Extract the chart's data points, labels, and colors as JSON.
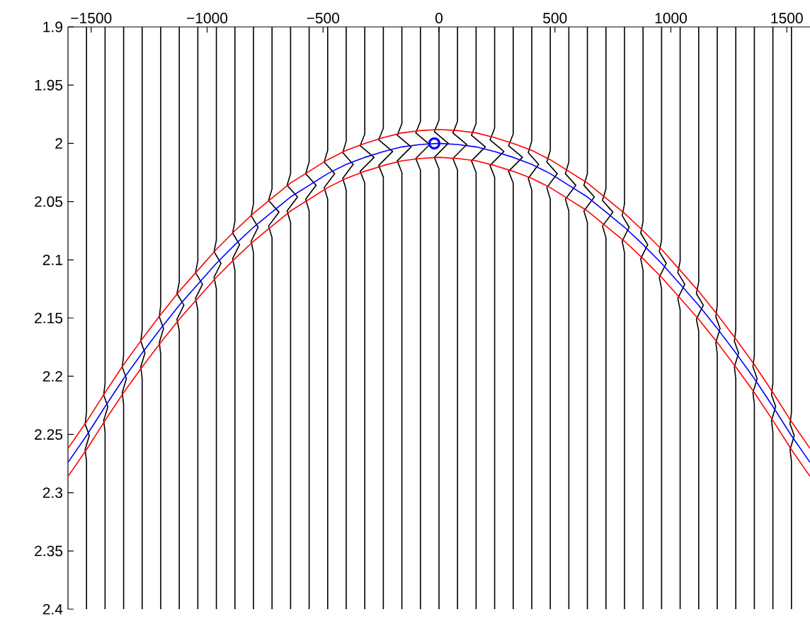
{
  "chart_data": {
    "type": "line",
    "xlim": [
      -1600,
      1600
    ],
    "ylim": [
      2.4,
      1.9
    ],
    "xticks": [
      {
        "value": -1500,
        "label": "−1500"
      },
      {
        "value": -1000,
        "label": "−1000"
      },
      {
        "value": -500,
        "label": "−500"
      },
      0,
      500,
      1000,
      1500
    ],
    "yticks": [
      1.9,
      1.95,
      2,
      2.05,
      2.1,
      2.15,
      2.2,
      2.25,
      2.3,
      2.35,
      2.4
    ],
    "grid": false,
    "marker": "none",
    "x": [
      -1600,
      -1520,
      -1440,
      -1360,
      -1280,
      -1200,
      -1120,
      -1040,
      -960,
      -880,
      -800,
      -720,
      -640,
      -560,
      -480,
      -400,
      -320,
      -240,
      -160,
      -80,
      0,
      80,
      160,
      240,
      320,
      400,
      480,
      560,
      640,
      720,
      800,
      880,
      960,
      1040,
      1120,
      1200,
      1280,
      1360,
      1440,
      1520,
      1600
    ],
    "series": [
      {
        "color": "#000000",
        "x": [
          -1520,
          -1520,
          -1526,
          -1508,
          -1526,
          -1520,
          -1520
        ],
        "values": [
          1.9,
          2.231,
          2.241,
          2.251,
          2.263,
          2.273,
          2.4
        ]
      },
      {
        "color": "#000000",
        "x": [
          -1440,
          -1440,
          -1446,
          -1428,
          -1446,
          -1440,
          -1440
        ],
        "values": [
          1.9,
          2.206,
          2.216,
          2.226,
          2.238,
          2.248,
          2.4
        ]
      },
      {
        "color": "#000000",
        "x": [
          -1360,
          -1360,
          -1366,
          -1348,
          -1366,
          -1360,
          -1360
        ],
        "values": [
          1.9,
          2.182,
          2.192,
          2.202,
          2.214,
          2.224,
          2.4
        ]
      },
      {
        "color": "#000000",
        "x": [
          -1280,
          -1280,
          -1286,
          -1268,
          -1286,
          -1280,
          -1280
        ],
        "values": [
          1.9,
          2.16,
          2.17,
          2.18,
          2.192,
          2.202,
          2.4
        ]
      },
      {
        "color": "#000000",
        "x": [
          -1200,
          -1200,
          -1206,
          -1188,
          -1206,
          -1200,
          -1200
        ],
        "values": [
          1.9,
          2.139,
          2.149,
          2.159,
          2.171,
          2.181,
          2.4
        ]
      },
      {
        "color": "#000000",
        "x": [
          -1120,
          -1120,
          -1130,
          -1100,
          -1130,
          -1120,
          -1120
        ],
        "values": [
          1.9,
          2.119,
          2.129,
          2.139,
          2.151,
          2.161,
          2.4
        ]
      },
      {
        "color": "#000000",
        "x": [
          -1040,
          -1040,
          -1050,
          -1020,
          -1050,
          -1040,
          -1040
        ],
        "values": [
          1.9,
          2.101,
          2.111,
          2.121,
          2.133,
          2.143,
          2.4
        ]
      },
      {
        "color": "#000000",
        "x": [
          -960,
          -960,
          -970,
          -940,
          -970,
          -960,
          -960
        ],
        "values": [
          1.9,
          2.083,
          2.093,
          2.103,
          2.115,
          2.125,
          2.4
        ]
      },
      {
        "color": "#000000",
        "x": [
          -880,
          -880,
          -890,
          -860,
          -890,
          -880,
          -880
        ],
        "values": [
          1.9,
          2.067,
          2.077,
          2.087,
          2.099,
          2.109,
          2.4
        ]
      },
      {
        "color": "#000000",
        "x": [
          -800,
          -800,
          -810,
          -780,
          -810,
          -800,
          -800
        ],
        "values": [
          1.9,
          2.052,
          2.062,
          2.072,
          2.084,
          2.094,
          2.4
        ]
      },
      {
        "color": "#000000",
        "x": [
          -720,
          -720,
          -735,
          -690,
          -735,
          -720,
          -720
        ],
        "values": [
          1.9,
          2.039,
          2.049,
          2.059,
          2.071,
          2.081,
          2.4
        ]
      },
      {
        "color": "#000000",
        "x": [
          -640,
          -640,
          -655,
          -610,
          -655,
          -640,
          -640
        ],
        "values": [
          1.9,
          2.026,
          2.036,
          2.046,
          2.058,
          2.068,
          2.4
        ]
      },
      {
        "color": "#000000",
        "x": [
          -560,
          -560,
          -575,
          -530,
          -575,
          -560,
          -560
        ],
        "values": [
          1.9,
          2.016,
          2.026,
          2.036,
          2.048,
          2.058,
          2.4
        ]
      },
      {
        "color": "#000000",
        "x": [
          -480,
          -480,
          -495,
          -450,
          -495,
          -480,
          -480
        ],
        "values": [
          1.9,
          2.006,
          2.016,
          2.026,
          2.038,
          2.048,
          2.4
        ]
      },
      {
        "color": "#000000",
        "x": [
          -400,
          -400,
          -415,
          -370,
          -415,
          -400,
          -400
        ],
        "values": [
          1.9,
          1.998,
          2.008,
          2.018,
          2.03,
          2.04,
          2.4
        ]
      },
      {
        "color": "#000000",
        "x": [
          -320,
          -320,
          -340,
          -280,
          -340,
          -320,
          -320
        ],
        "values": [
          1.9,
          1.992,
          2.002,
          2.012,
          2.024,
          2.034,
          2.4
        ]
      },
      {
        "color": "#000000",
        "x": [
          -240,
          -240,
          -260,
          -200,
          -260,
          -240,
          -240
        ],
        "values": [
          1.9,
          1.987,
          1.997,
          2.007,
          2.019,
          2.029,
          2.4
        ]
      },
      {
        "color": "#000000",
        "x": [
          -160,
          -160,
          -180,
          -120,
          -180,
          -160,
          -160
        ],
        "values": [
          1.9,
          1.983,
          1.993,
          2.003,
          2.015,
          2.025,
          2.4
        ]
      },
      {
        "color": "#000000",
        "x": [
          -80,
          -80,
          -100,
          -40,
          -100,
          -80,
          -80
        ],
        "values": [
          1.9,
          1.981,
          1.991,
          2.001,
          2.013,
          2.023,
          2.4
        ]
      },
      {
        "color": "#000000",
        "x": [
          0,
          0,
          -20,
          40,
          -20,
          0,
          0
        ],
        "values": [
          1.9,
          1.98,
          1.99,
          2,
          2.012,
          2.022,
          2.4
        ]
      },
      {
        "color": "#000000",
        "x": [
          80,
          80,
          60,
          120,
          60,
          80,
          80
        ],
        "values": [
          1.9,
          1.981,
          1.991,
          2.001,
          2.013,
          2.023,
          2.4
        ]
      },
      {
        "color": "#000000",
        "x": [
          160,
          160,
          140,
          200,
          140,
          160,
          160
        ],
        "values": [
          1.9,
          1.983,
          1.993,
          2.003,
          2.015,
          2.025,
          2.4
        ]
      },
      {
        "color": "#000000",
        "x": [
          240,
          240,
          220,
          280,
          220,
          240,
          240
        ],
        "values": [
          1.9,
          1.987,
          1.997,
          2.007,
          2.019,
          2.029,
          2.4
        ]
      },
      {
        "color": "#000000",
        "x": [
          320,
          320,
          300,
          360,
          300,
          320,
          320
        ],
        "values": [
          1.9,
          1.992,
          2.002,
          2.012,
          2.024,
          2.034,
          2.4
        ]
      },
      {
        "color": "#000000",
        "x": [
          400,
          400,
          385,
          430,
          385,
          400,
          400
        ],
        "values": [
          1.9,
          1.998,
          2.008,
          2.018,
          2.03,
          2.04,
          2.4
        ]
      },
      {
        "color": "#000000",
        "x": [
          480,
          480,
          465,
          510,
          465,
          480,
          480
        ],
        "values": [
          1.9,
          2.006,
          2.016,
          2.026,
          2.038,
          2.048,
          2.4
        ]
      },
      {
        "color": "#000000",
        "x": [
          560,
          560,
          545,
          590,
          545,
          560,
          560
        ],
        "values": [
          1.9,
          2.016,
          2.026,
          2.036,
          2.048,
          2.058,
          2.4
        ]
      },
      {
        "color": "#000000",
        "x": [
          640,
          640,
          625,
          670,
          625,
          640,
          640
        ],
        "values": [
          1.9,
          2.026,
          2.036,
          2.046,
          2.058,
          2.068,
          2.4
        ]
      },
      {
        "color": "#000000",
        "x": [
          720,
          720,
          705,
          750,
          705,
          720,
          720
        ],
        "values": [
          1.9,
          2.039,
          2.049,
          2.059,
          2.071,
          2.081,
          2.4
        ]
      },
      {
        "color": "#000000",
        "x": [
          800,
          800,
          790,
          820,
          790,
          800,
          800
        ],
        "values": [
          1.9,
          2.052,
          2.062,
          2.072,
          2.084,
          2.094,
          2.4
        ]
      },
      {
        "color": "#000000",
        "x": [
          880,
          880,
          870,
          900,
          870,
          880,
          880
        ],
        "values": [
          1.9,
          2.067,
          2.077,
          2.087,
          2.099,
          2.109,
          2.4
        ]
      },
      {
        "color": "#000000",
        "x": [
          960,
          960,
          950,
          980,
          950,
          960,
          960
        ],
        "values": [
          1.9,
          2.083,
          2.093,
          2.103,
          2.115,
          2.125,
          2.4
        ]
      },
      {
        "color": "#000000",
        "x": [
          1040,
          1040,
          1030,
          1060,
          1030,
          1040,
          1040
        ],
        "values": [
          1.9,
          2.101,
          2.111,
          2.121,
          2.133,
          2.143,
          2.4
        ]
      },
      {
        "color": "#000000",
        "x": [
          1120,
          1120,
          1110,
          1140,
          1110,
          1120,
          1120
        ],
        "values": [
          1.9,
          2.119,
          2.129,
          2.139,
          2.151,
          2.161,
          2.4
        ]
      },
      {
        "color": "#000000",
        "x": [
          1200,
          1200,
          1194,
          1212,
          1194,
          1200,
          1200
        ],
        "values": [
          1.9,
          2.139,
          2.149,
          2.159,
          2.171,
          2.181,
          2.4
        ]
      },
      {
        "color": "#000000",
        "x": [
          1280,
          1280,
          1274,
          1292,
          1274,
          1280,
          1280
        ],
        "values": [
          1.9,
          2.16,
          2.17,
          2.18,
          2.192,
          2.202,
          2.4
        ]
      },
      {
        "color": "#000000",
        "x": [
          1360,
          1360,
          1354,
          1372,
          1354,
          1360,
          1360
        ],
        "values": [
          1.9,
          2.182,
          2.192,
          2.202,
          2.214,
          2.224,
          2.4
        ]
      },
      {
        "color": "#000000",
        "x": [
          1440,
          1440,
          1434,
          1452,
          1434,
          1440,
          1440
        ],
        "values": [
          1.9,
          2.206,
          2.216,
          2.226,
          2.238,
          2.248,
          2.4
        ]
      },
      {
        "color": "#000000",
        "x": [
          1520,
          1520,
          1514,
          1532,
          1514,
          1520,
          1520
        ],
        "values": [
          1.9,
          2.231,
          2.241,
          2.251,
          2.263,
          2.273,
          2.4
        ]
      },
      {
        "color": "#ff0000",
        "values": [
          2.262,
          2.239,
          2.214,
          2.19,
          2.168,
          2.147,
          2.127,
          2.109,
          2.091,
          2.075,
          2.06,
          2.047,
          2.034,
          2.024,
          2.014,
          2.006,
          2,
          1.995,
          1.991,
          1.989,
          1.988,
          1.989,
          1.991,
          1.995,
          2,
          2.006,
          2.014,
          2.024,
          2.034,
          2.047,
          2.06,
          2.075,
          2.091,
          2.109,
          2.127,
          2.147,
          2.168,
          2.19,
          2.214,
          2.239,
          2.262
        ]
      },
      {
        "color": "#ff0000",
        "values": [
          2.286,
          2.263,
          2.238,
          2.214,
          2.192,
          2.171,
          2.151,
          2.133,
          2.115,
          2.099,
          2.084,
          2.071,
          2.058,
          2.048,
          2.038,
          2.03,
          2.024,
          2.019,
          2.015,
          2.013,
          2.012,
          2.013,
          2.015,
          2.019,
          2.024,
          2.03,
          2.038,
          2.048,
          2.058,
          2.071,
          2.084,
          2.099,
          2.115,
          2.133,
          2.151,
          2.171,
          2.192,
          2.214,
          2.238,
          2.263,
          2.286
        ]
      },
      {
        "color": "#0000ff",
        "values": [
          2.274,
          2.251,
          2.226,
          2.202,
          2.18,
          2.159,
          2.139,
          2.121,
          2.103,
          2.087,
          2.072,
          2.059,
          2.046,
          2.036,
          2.026,
          2.018,
          2.012,
          2.007,
          2.003,
          2.001,
          2,
          2.001,
          2.003,
          2.007,
          2.012,
          2.018,
          2.026,
          2.036,
          2.046,
          2.059,
          2.072,
          2.087,
          2.103,
          2.121,
          2.139,
          2.159,
          2.18,
          2.202,
          2.226,
          2.251,
          2.274
        ]
      },
      {
        "type": "scatter",
        "marker": "circle",
        "color": "#0000ff",
        "x": [
          -20
        ],
        "values": [
          2
        ]
      }
    ]
  }
}
